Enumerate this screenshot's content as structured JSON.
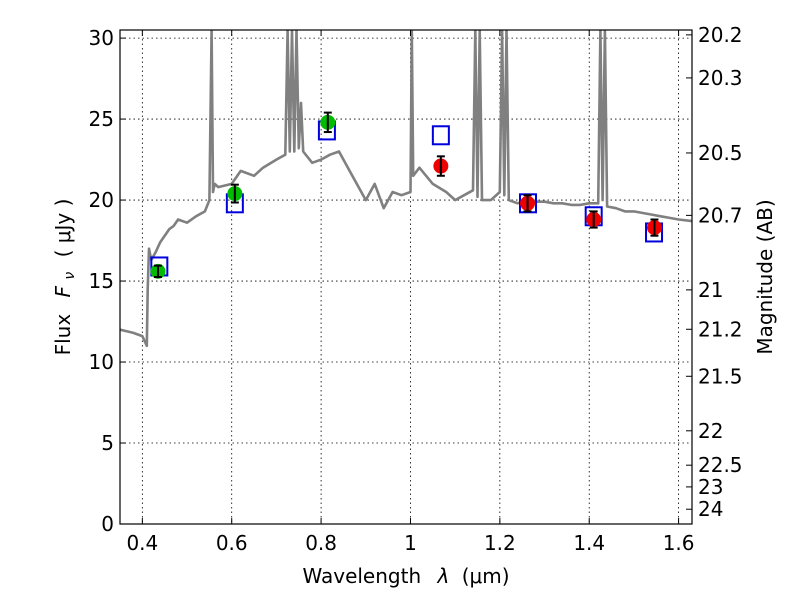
{
  "chart_data": {
    "type": "scatter",
    "xlabel_text": "Wavelength",
    "xlabel_symbol": "λ",
    "xlabel_unit": "(μm)",
    "ylabel_text": "Flux",
    "ylabel_symbol": "F",
    "ylabel_sub": "ν",
    "ylabel_unit": "( μJy )",
    "y2label": "Magnitude (AB)",
    "xlim": [
      0.35,
      1.63
    ],
    "ylim": [
      0,
      30.5
    ],
    "grid": true,
    "x_ticks": [
      0.4,
      0.6,
      0.8,
      1.0,
      1.2,
      1.4,
      1.6
    ],
    "x_tick_labels": [
      "0.4",
      "0.6",
      "0.8",
      "1",
      "1.2",
      "1.4",
      "1.6"
    ],
    "y_ticks": [
      0,
      5,
      10,
      15,
      20,
      25,
      30
    ],
    "y_tick_labels": [
      "0",
      "5",
      "10",
      "15",
      "20",
      "25",
      "30"
    ],
    "mag_ticks": [
      20.2,
      20.3,
      20.5,
      20.7,
      21,
      21.2,
      21.5,
      22,
      22.5,
      23,
      24
    ],
    "mag_tick_labels": [
      "20.2",
      "20.3",
      "20.5",
      "20.7",
      "21",
      "21.2",
      "21.5",
      "22",
      "22.5",
      "23",
      "24"
    ],
    "colors": {
      "model": "#808080",
      "green": "#00bb00",
      "red": "#ee0000",
      "box": "#0000dd",
      "errorbar": "#000000"
    },
    "series": [
      {
        "name": "model spectrum",
        "style": "line",
        "x": [
          0.35,
          0.38,
          0.4,
          0.405,
          0.41,
          0.412,
          0.415,
          0.42,
          0.43,
          0.44,
          0.45,
          0.46,
          0.47,
          0.48,
          0.5,
          0.52,
          0.54,
          0.55,
          0.555,
          0.558,
          0.562,
          0.57,
          0.6,
          0.62,
          0.65,
          0.67,
          0.7,
          0.72,
          0.725,
          0.73,
          0.735,
          0.74,
          0.745,
          0.75,
          0.755,
          0.76,
          0.78,
          0.8,
          0.82,
          0.84,
          0.86,
          0.88,
          0.9,
          0.92,
          0.94,
          0.96,
          0.98,
          1.0,
          1.003,
          1.006,
          1.02,
          1.05,
          1.08,
          1.1,
          1.12,
          1.14,
          1.145,
          1.15,
          1.155,
          1.16,
          1.18,
          1.2,
          1.205,
          1.21,
          1.215,
          1.22,
          1.24,
          1.26,
          1.28,
          1.3,
          1.32,
          1.34,
          1.36,
          1.38,
          1.4,
          1.42,
          1.425,
          1.43,
          1.435,
          1.44,
          1.46,
          1.48,
          1.5,
          1.52,
          1.54,
          1.56,
          1.58,
          1.6,
          1.63
        ],
        "y": [
          12.0,
          11.8,
          11.6,
          11.3,
          11.0,
          14.5,
          17.0,
          16.3,
          16.8,
          17.4,
          17.8,
          18.2,
          18.4,
          18.8,
          18.6,
          19.0,
          19.3,
          20.0,
          30.5,
          20.5,
          21.0,
          20.8,
          21.0,
          21.8,
          21.5,
          22.0,
          22.5,
          22.8,
          30.5,
          23.0,
          30.5,
          23.0,
          30.5,
          23.2,
          26.0,
          23.0,
          22.3,
          22.5,
          22.8,
          23.0,
          22.0,
          21.0,
          20.0,
          21.0,
          19.5,
          20.5,
          20.3,
          20.5,
          30.5,
          21.5,
          22.0,
          21.0,
          20.5,
          20.0,
          20.3,
          20.6,
          30.5,
          20.2,
          30.5,
          20.0,
          20.0,
          20.5,
          30.5,
          20.3,
          30.5,
          20.0,
          19.8,
          20.0,
          19.9,
          19.9,
          19.8,
          19.8,
          19.7,
          19.7,
          19.8,
          19.8,
          30.5,
          20.0,
          30.5,
          19.6,
          19.5,
          19.3,
          19.3,
          19.2,
          19.1,
          19.0,
          18.9,
          18.8,
          18.7
        ]
      },
      {
        "name": "green photometry",
        "style": "marker",
        "marker": "circle",
        "x": [
          0.435,
          0.607,
          0.815
        ],
        "y": [
          15.6,
          20.4,
          24.8
        ],
        "yerr": [
          0.35,
          0.55,
          0.6
        ]
      },
      {
        "name": "red photometry",
        "style": "marker",
        "marker": "circle",
        "x": [
          1.068,
          1.262,
          1.41,
          1.546
        ],
        "y": [
          22.1,
          19.8,
          18.8,
          18.3
        ],
        "yerr": [
          0.6,
          0.5,
          0.5,
          0.5
        ]
      },
      {
        "name": "model synthetic photometry",
        "style": "marker",
        "marker": "open-square",
        "x": [
          0.438,
          0.607,
          0.813,
          1.068,
          1.263,
          1.41,
          1.545
        ],
        "y": [
          15.9,
          19.8,
          24.3,
          24.0,
          19.8,
          19.0,
          18.0
        ]
      }
    ]
  }
}
